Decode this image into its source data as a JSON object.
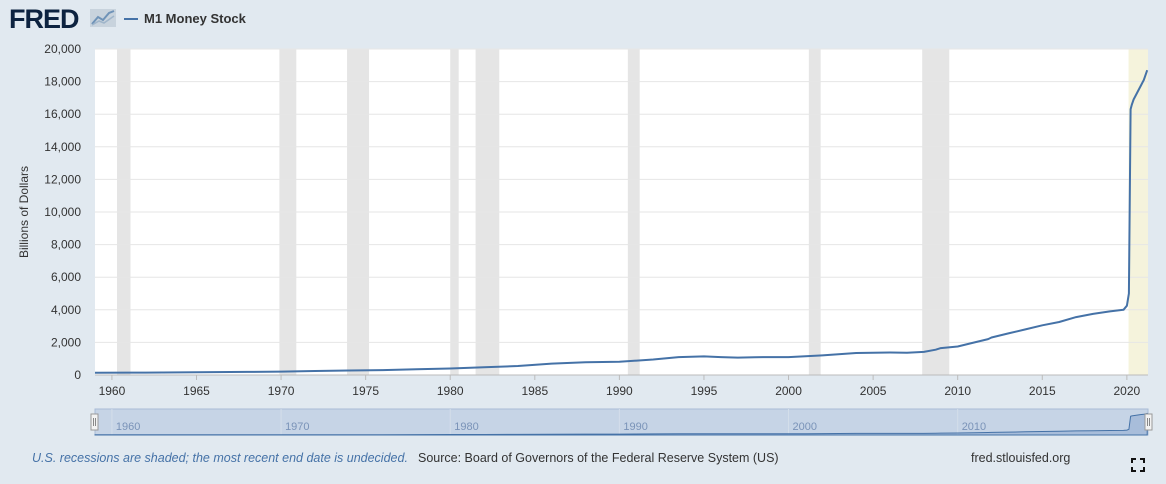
{
  "header": {
    "logo_text": "FRED",
    "legend_label": "M1 Money Stock"
  },
  "footer": {
    "recession_note": "U.S. recessions are shaded; the most recent end date is undecided.",
    "source": "Source: Board of Governors of the Federal Reserve System (US)",
    "url": "fred.stlouisfed.org"
  },
  "colors": {
    "series": "#4572a7",
    "recession_shade": "#e5e5e5",
    "undecided_shade": "#f5f3dc",
    "background": "#e1e9f0"
  },
  "navigator": {
    "tick_labels": [
      "1960",
      "1970",
      "1980",
      "1990",
      "2000",
      "2010"
    ]
  },
  "chart_data": {
    "type": "line",
    "title": "",
    "xlabel": "",
    "ylabel": "Billions of Dollars",
    "xlim": [
      1959,
      2021.25
    ],
    "ylim": [
      0,
      20000
    ],
    "grid": true,
    "legend_position": "top-left",
    "x_tick_labels": [
      "1960",
      "1965",
      "1970",
      "1975",
      "1980",
      "1985",
      "1990",
      "1995",
      "2000",
      "2005",
      "2010",
      "2015",
      "2020"
    ],
    "y_tick_labels": [
      "0",
      "2,000",
      "4,000",
      "6,000",
      "8,000",
      "10,000",
      "12,000",
      "14,000",
      "16,000",
      "18,000",
      "20,000"
    ],
    "recessions": [
      [
        1960.3,
        1961.1
      ],
      [
        1969.9,
        1970.9
      ],
      [
        1973.9,
        1975.2
      ],
      [
        1980.0,
        1980.5
      ],
      [
        1981.5,
        1982.9
      ],
      [
        1990.5,
        1991.2
      ],
      [
        2001.2,
        2001.9
      ],
      [
        2007.9,
        2009.5
      ]
    ],
    "recession_undecided": [
      2020.1,
      2021.25
    ],
    "series": [
      {
        "name": "M1 Money Stock",
        "x": [
          1959,
          1962,
          1965,
          1968,
          1970,
          1972,
          1974,
          1976,
          1978,
          1980,
          1982,
          1984,
          1986,
          1988,
          1990,
          1992,
          1993.5,
          1995,
          1996,
          1997,
          1998,
          2000,
          2001,
          2002,
          2004,
          2005,
          2006,
          2007,
          2008,
          2008.7,
          2009,
          2010,
          2011,
          2011.8,
          2012,
          2013,
          2014,
          2015,
          2016,
          2017,
          2018,
          2019,
          2019.8,
          2020.0,
          2020.12,
          2020.22,
          2020.3,
          2020.4,
          2020.6,
          2020.8,
          2021.0,
          2021.2
        ],
        "y": [
          140,
          145,
          165,
          190,
          210,
          245,
          275,
          300,
          355,
          400,
          470,
          550,
          700,
          780,
          810,
          950,
          1100,
          1140,
          1100,
          1070,
          1090,
          1100,
          1150,
          1200,
          1350,
          1370,
          1380,
          1370,
          1420,
          1550,
          1650,
          1750,
          2000,
          2200,
          2300,
          2550,
          2800,
          3050,
          3250,
          3550,
          3750,
          3900,
          4000,
          4250,
          5000,
          16300,
          16600,
          16900,
          17300,
          17700,
          18100,
          18700
        ]
      }
    ]
  }
}
